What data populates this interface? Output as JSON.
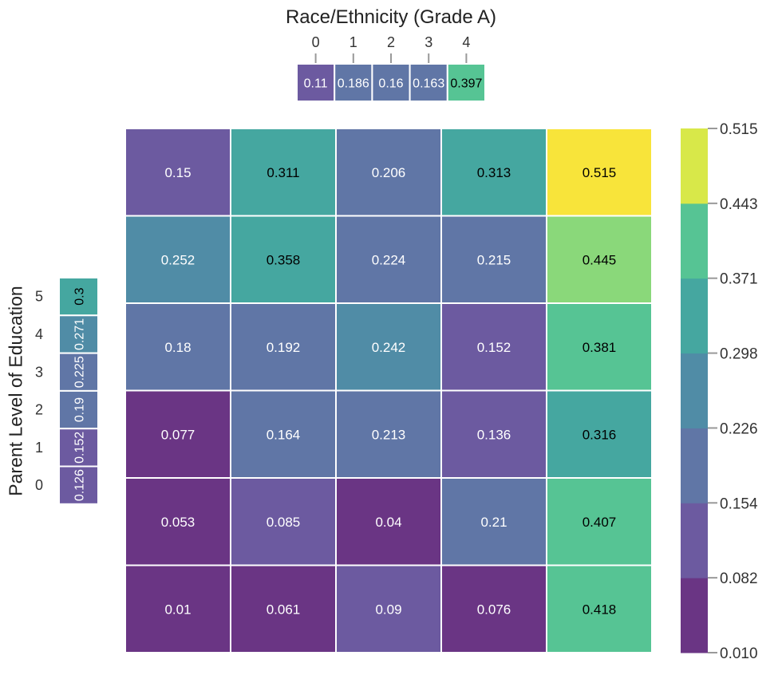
{
  "chart_data": {
    "type": "heatmap",
    "title": "Race/Ethnicity (Grade A)",
    "ylabel": "Parent Level of Education",
    "top_marginal": {
      "categories": [
        "0",
        "1",
        "2",
        "3",
        "4"
      ],
      "values": [
        0.11,
        0.186,
        0.16,
        0.163,
        0.397
      ],
      "labels": [
        "0.11",
        "0.186",
        "0.16",
        "0.163",
        "0.397"
      ]
    },
    "left_marginal": {
      "categories": [
        "5",
        "4",
        "3",
        "2",
        "1",
        "0"
      ],
      "values": [
        0.3,
        0.271,
        0.225,
        0.19,
        0.152,
        0.126
      ],
      "labels": [
        "0.3",
        "0.271",
        "0.225",
        "0.19",
        "0.152",
        "0.126"
      ]
    },
    "matrix": [
      [
        0.15,
        0.311,
        0.206,
        0.313,
        0.515
      ],
      [
        0.252,
        0.358,
        0.224,
        0.215,
        0.445
      ],
      [
        0.18,
        0.192,
        0.242,
        0.152,
        0.381
      ],
      [
        0.077,
        0.164,
        0.213,
        0.136,
        0.316
      ],
      [
        0.053,
        0.085,
        0.04,
        0.21,
        0.407
      ],
      [
        0.01,
        0.061,
        0.09,
        0.076,
        0.418
      ]
    ],
    "matrix_labels": [
      [
        "0.15",
        "0.311",
        "0.206",
        "0.313",
        "0.515"
      ],
      [
        "0.252",
        "0.358",
        "0.224",
        "0.215",
        "0.445"
      ],
      [
        "0.18",
        "0.192",
        "0.242",
        "0.152",
        "0.381"
      ],
      [
        "0.077",
        "0.164",
        "0.213",
        "0.136",
        "0.316"
      ],
      [
        "0.053",
        "0.085",
        "0.04",
        "0.21",
        "0.407"
      ],
      [
        "0.01",
        "0.061",
        "0.09",
        "0.076",
        "0.418"
      ]
    ],
    "colorbar": {
      "ticks": [
        "0.010",
        "0.082",
        "0.154",
        "0.226",
        "0.298",
        "0.371",
        "0.443",
        "0.515"
      ],
      "vmin": 0.01,
      "vmax": 0.515,
      "bins": 7
    },
    "colors": {
      "palette": [
        "#6a3584",
        "#6c5aa0",
        "#6076a6",
        "#508ca6",
        "#45a7a0",
        "#56c494",
        "#8ad87a",
        "#d8e849"
      ],
      "max_color": "#f8e43a",
      "grid": "#ffffff",
      "dark_text_threshold": 0.3
    }
  }
}
